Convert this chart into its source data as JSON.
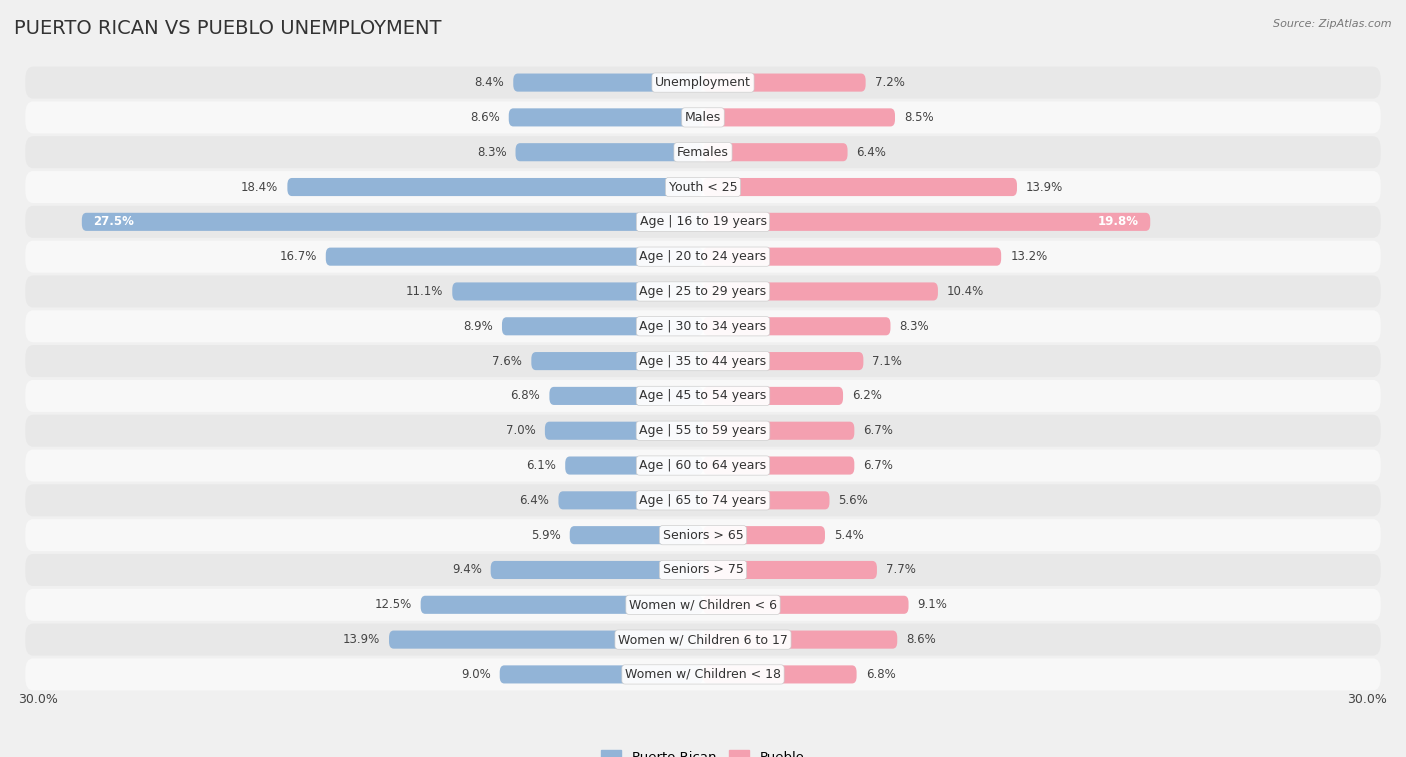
{
  "title": "PUERTO RICAN VS PUEBLO UNEMPLOYMENT",
  "source": "Source: ZipAtlas.com",
  "categories": [
    "Unemployment",
    "Males",
    "Females",
    "Youth < 25",
    "Age | 16 to 19 years",
    "Age | 20 to 24 years",
    "Age | 25 to 29 years",
    "Age | 30 to 34 years",
    "Age | 35 to 44 years",
    "Age | 45 to 54 years",
    "Age | 55 to 59 years",
    "Age | 60 to 64 years",
    "Age | 65 to 74 years",
    "Seniors > 65",
    "Seniors > 75",
    "Women w/ Children < 6",
    "Women w/ Children 6 to 17",
    "Women w/ Children < 18"
  ],
  "left_values": [
    8.4,
    8.6,
    8.3,
    18.4,
    27.5,
    16.7,
    11.1,
    8.9,
    7.6,
    6.8,
    7.0,
    6.1,
    6.4,
    5.9,
    9.4,
    12.5,
    13.9,
    9.0
  ],
  "right_values": [
    7.2,
    8.5,
    6.4,
    13.9,
    19.8,
    13.2,
    10.4,
    8.3,
    7.1,
    6.2,
    6.7,
    6.7,
    5.6,
    5.4,
    7.7,
    9.1,
    8.6,
    6.8
  ],
  "left_color": "#92b4d7",
  "right_color": "#f4a0b0",
  "left_label": "Puerto Rican",
  "right_label": "Pueblo",
  "max_val": 30.0,
  "bg_color": "#f0f0f0",
  "row_bg_alt": "#e8e8e8",
  "row_bg_main": "#f8f8f8",
  "title_fontsize": 14,
  "label_fontsize": 9,
  "value_fontsize": 8.5,
  "source_fontsize": 8
}
